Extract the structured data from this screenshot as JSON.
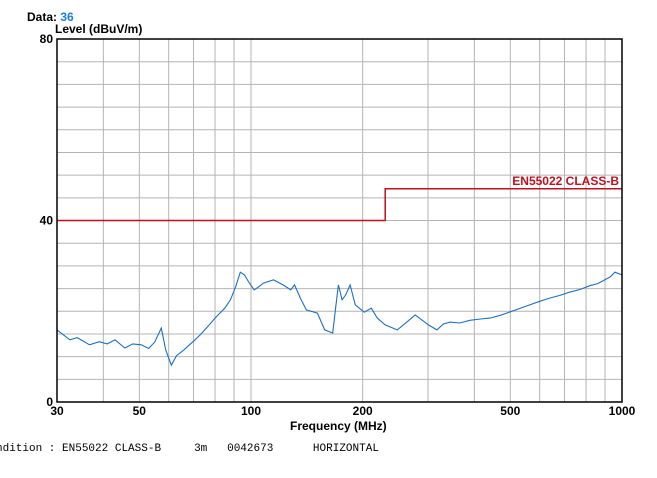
{
  "header": {
    "data_label": "Data:",
    "data_value": "36"
  },
  "condition_line": {
    "prefix": "ndition :",
    "limit": "EN55022 CLASS-B",
    "distance": "3m",
    "id": "0042673",
    "polarization": "HORIZONTAL"
  },
  "chart_data": {
    "type": "line",
    "title": "",
    "xlabel": "Frequency (MHz)",
    "ylabel": "Level (dBuV/m)",
    "xscale": "log",
    "xlim": [
      30,
      1000
    ],
    "ylim": [
      0,
      80
    ],
    "grid": true,
    "x_tick_labels": [
      "30",
      "50",
      "100",
      "200",
      "500",
      "1000"
    ],
    "x_ticks": [
      30,
      50,
      100,
      200,
      500,
      1000
    ],
    "x_grid": [
      30,
      40,
      50,
      60,
      70,
      80,
      90,
      100,
      200,
      300,
      400,
      500,
      600,
      700,
      800,
      900,
      1000
    ],
    "y_tick_labels": [
      "0",
      "40",
      "80"
    ],
    "y_ticks": [
      0,
      40,
      80
    ],
    "y_grid_step": 5,
    "colors": {
      "trace": "#1f6fbf",
      "limit": "#c0111f",
      "grid": "#b4b4b4"
    },
    "limit": {
      "name": "EN55022 CLASS-B",
      "points": [
        [
          30,
          40
        ],
        [
          230,
          40
        ],
        [
          230,
          47
        ],
        [
          1000,
          47
        ]
      ]
    },
    "series": [
      {
        "x": [
          30,
          32.5,
          34,
          36.7,
          39,
          41,
          43,
          45.7,
          48,
          50.6,
          53,
          55,
          57.3,
          58.9,
          61,
          63,
          66,
          70,
          73,
          77,
          80,
          85,
          88,
          91,
          93.6,
          96,
          99,
          102,
          105,
          108,
          115,
          122,
          128,
          131,
          136,
          141,
          151,
          158,
          166,
          169,
          172,
          176,
          180,
          185,
          191,
          202,
          211,
          219,
          230,
          248,
          262,
          277,
          301,
          317,
          330,
          344,
          365,
          389,
          415,
          441,
          470,
          497,
          530,
          564,
          600,
          638,
          680,
          722,
          770,
          817,
          860,
          898,
          930,
          957,
          1000
        ],
        "y": [
          15.9,
          13.7,
          14.2,
          12.6,
          13.3,
          12.8,
          13.7,
          11.9,
          12.8,
          12.6,
          11.8,
          13.2,
          16.3,
          11.5,
          8.1,
          10.2,
          11.5,
          13.4,
          14.8,
          16.9,
          18.5,
          20.7,
          22.5,
          25.5,
          28.6,
          28,
          26.2,
          24.7,
          25.4,
          26.2,
          26.9,
          25.8,
          24.7,
          25.8,
          22.8,
          20.3,
          19.6,
          15.9,
          15.2,
          20.5,
          25.8,
          22.5,
          23.6,
          25.8,
          21.4,
          19.8,
          20.7,
          18.5,
          17,
          15.9,
          17.5,
          19.2,
          17,
          15.9,
          17.2,
          17.6,
          17.4,
          18,
          18.3,
          18.5,
          19.1,
          19.8,
          20.6,
          21.4,
          22.2,
          22.9,
          23.5,
          24.2,
          24.8,
          25.6,
          26.1,
          26.9,
          27.6,
          28.6,
          28
        ]
      }
    ]
  }
}
